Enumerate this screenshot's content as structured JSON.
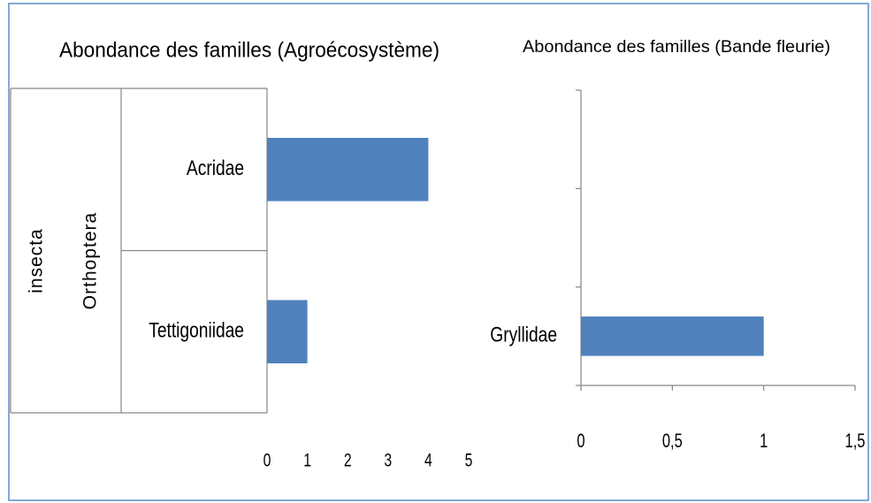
{
  "chart_data": [
    {
      "type": "barh",
      "title": "Abondance des familles (Agroécosystème)",
      "group_labels": [
        "Orthoptera",
        "insecta"
      ],
      "categories": [
        "Acridae",
        "Tettigoniidae"
      ],
      "values": [
        4,
        1
      ],
      "color": "#4f81bd",
      "xlim": [
        0,
        5
      ],
      "xticks": [
        0,
        1,
        2,
        3,
        4,
        5
      ]
    },
    {
      "type": "barh",
      "title": "Abondance des familles (Bande fleurie)",
      "categories": [
        null,
        null,
        "Gryllidae"
      ],
      "values": [
        null,
        null,
        1
      ],
      "color": "#4f81bd",
      "xlim": [
        0,
        1.5
      ],
      "xticks": [
        0,
        {
          "value": 0.5,
          "label": "0,5"
        },
        1,
        {
          "value": 1.5,
          "label": "1,5"
        }
      ]
    }
  ]
}
